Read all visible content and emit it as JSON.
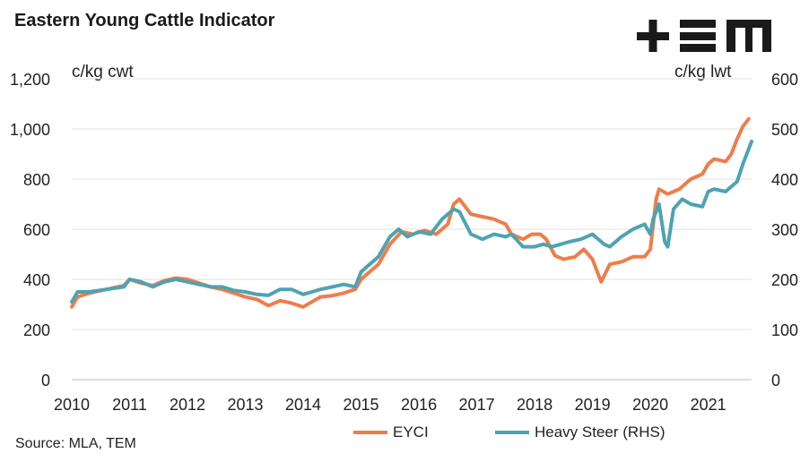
{
  "title": "Eastern Young Cattle Indicator",
  "left_unit": "c/kg cwt",
  "right_unit": "c/kg lwt",
  "source": "Source: MLA, TEM",
  "logo": {
    "name": "TEM-logo",
    "color": "#1a1a1a"
  },
  "chart_data": {
    "type": "line",
    "title": "Eastern Young Cattle Indicator",
    "xlabel": "",
    "ylabel_left": "c/kg cwt",
    "ylabel_right": "c/kg lwt",
    "x_ticks": [
      "2010",
      "2011",
      "2012",
      "2013",
      "2014",
      "2015",
      "2016",
      "2017",
      "2018",
      "2019",
      "2020",
      "2021"
    ],
    "y_left_ticks": [
      "0",
      "200",
      "400",
      "600",
      "800",
      "1,000",
      "1,200"
    ],
    "y_right_ticks": [
      "0",
      "100",
      "200",
      "300",
      "400",
      "500",
      "600"
    ],
    "ylim_left": [
      0,
      1200
    ],
    "ylim_right": [
      0,
      600
    ],
    "xlim": [
      2010,
      2021.75
    ],
    "grid": "horizontal",
    "legend_position": "bottom",
    "series": [
      {
        "name": "EYCI",
        "axis": "left",
        "color": "#f07c4a",
        "points": [
          [
            2010.0,
            290
          ],
          [
            2010.1,
            330
          ],
          [
            2010.3,
            345
          ],
          [
            2010.6,
            360
          ],
          [
            2010.9,
            375
          ],
          [
            2011.0,
            400
          ],
          [
            2011.2,
            385
          ],
          [
            2011.4,
            375
          ],
          [
            2011.6,
            395
          ],
          [
            2011.8,
            405
          ],
          [
            2012.0,
            400
          ],
          [
            2012.2,
            385
          ],
          [
            2012.4,
            370
          ],
          [
            2012.6,
            360
          ],
          [
            2012.8,
            345
          ],
          [
            2013.0,
            330
          ],
          [
            2013.2,
            320
          ],
          [
            2013.4,
            295
          ],
          [
            2013.6,
            315
          ],
          [
            2013.8,
            305
          ],
          [
            2014.0,
            290
          ],
          [
            2014.15,
            310
          ],
          [
            2014.3,
            330
          ],
          [
            2014.5,
            335
          ],
          [
            2014.7,
            345
          ],
          [
            2014.9,
            360
          ],
          [
            2015.0,
            400
          ],
          [
            2015.1,
            420
          ],
          [
            2015.3,
            460
          ],
          [
            2015.5,
            540
          ],
          [
            2015.7,
            590
          ],
          [
            2015.9,
            580
          ],
          [
            2016.1,
            595
          ],
          [
            2016.3,
            580
          ],
          [
            2016.5,
            620
          ],
          [
            2016.6,
            700
          ],
          [
            2016.7,
            720
          ],
          [
            2016.8,
            690
          ],
          [
            2016.9,
            660
          ],
          [
            2017.1,
            650
          ],
          [
            2017.3,
            640
          ],
          [
            2017.5,
            620
          ],
          [
            2017.6,
            580
          ],
          [
            2017.8,
            560
          ],
          [
            2017.95,
            580
          ],
          [
            2018.1,
            580
          ],
          [
            2018.2,
            560
          ],
          [
            2018.35,
            495
          ],
          [
            2018.5,
            480
          ],
          [
            2018.7,
            490
          ],
          [
            2018.85,
            520
          ],
          [
            2019.0,
            480
          ],
          [
            2019.1,
            420
          ],
          [
            2019.15,
            390
          ],
          [
            2019.3,
            460
          ],
          [
            2019.5,
            470
          ],
          [
            2019.7,
            490
          ],
          [
            2019.9,
            490
          ],
          [
            2020.0,
            520
          ],
          [
            2020.1,
            720
          ],
          [
            2020.15,
            760
          ],
          [
            2020.3,
            740
          ],
          [
            2020.5,
            760
          ],
          [
            2020.7,
            800
          ],
          [
            2020.9,
            820
          ],
          [
            2021.0,
            860
          ],
          [
            2021.1,
            880
          ],
          [
            2021.3,
            870
          ],
          [
            2021.4,
            900
          ],
          [
            2021.5,
            960
          ],
          [
            2021.6,
            1010
          ],
          [
            2021.7,
            1040
          ]
        ]
      },
      {
        "name": "Heavy Steer (RHS)",
        "axis": "right",
        "color": "#4ea3b2",
        "points": [
          [
            2010.0,
            155
          ],
          [
            2010.1,
            175
          ],
          [
            2010.3,
            175
          ],
          [
            2010.6,
            180
          ],
          [
            2010.9,
            185
          ],
          [
            2011.0,
            200
          ],
          [
            2011.2,
            195
          ],
          [
            2011.4,
            185
          ],
          [
            2011.6,
            195
          ],
          [
            2011.8,
            200
          ],
          [
            2012.0,
            195
          ],
          [
            2012.2,
            190
          ],
          [
            2012.4,
            185
          ],
          [
            2012.6,
            185
          ],
          [
            2012.8,
            178
          ],
          [
            2013.0,
            175
          ],
          [
            2013.2,
            170
          ],
          [
            2013.4,
            168
          ],
          [
            2013.6,
            180
          ],
          [
            2013.8,
            180
          ],
          [
            2014.0,
            170
          ],
          [
            2014.15,
            175
          ],
          [
            2014.3,
            180
          ],
          [
            2014.5,
            185
          ],
          [
            2014.7,
            190
          ],
          [
            2014.9,
            185
          ],
          [
            2015.0,
            215
          ],
          [
            2015.1,
            225
          ],
          [
            2015.3,
            245
          ],
          [
            2015.5,
            285
          ],
          [
            2015.65,
            300
          ],
          [
            2015.8,
            285
          ],
          [
            2016.0,
            295
          ],
          [
            2016.2,
            290
          ],
          [
            2016.4,
            320
          ],
          [
            2016.6,
            340
          ],
          [
            2016.7,
            335
          ],
          [
            2016.9,
            290
          ],
          [
            2017.1,
            280
          ],
          [
            2017.3,
            290
          ],
          [
            2017.5,
            285
          ],
          [
            2017.6,
            290
          ],
          [
            2017.8,
            265
          ],
          [
            2018.0,
            265
          ],
          [
            2018.15,
            270
          ],
          [
            2018.3,
            265
          ],
          [
            2018.45,
            270
          ],
          [
            2018.6,
            275
          ],
          [
            2018.8,
            280
          ],
          [
            2019.0,
            290
          ],
          [
            2019.2,
            270
          ],
          [
            2019.3,
            265
          ],
          [
            2019.5,
            285
          ],
          [
            2019.7,
            300
          ],
          [
            2019.9,
            310
          ],
          [
            2020.0,
            290
          ],
          [
            2020.05,
            320
          ],
          [
            2020.15,
            350
          ],
          [
            2020.25,
            275
          ],
          [
            2020.3,
            265
          ],
          [
            2020.4,
            340
          ],
          [
            2020.55,
            360
          ],
          [
            2020.7,
            350
          ],
          [
            2020.9,
            345
          ],
          [
            2021.0,
            375
          ],
          [
            2021.1,
            380
          ],
          [
            2021.3,
            375
          ],
          [
            2021.5,
            395
          ],
          [
            2021.6,
            430
          ],
          [
            2021.75,
            475
          ]
        ]
      }
    ]
  }
}
